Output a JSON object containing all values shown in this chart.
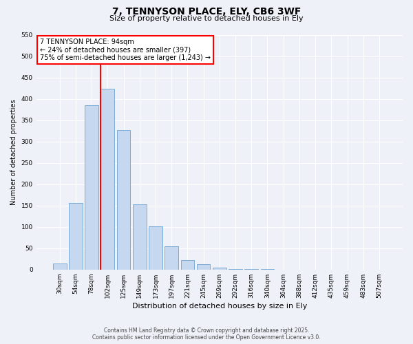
{
  "title_line1": "7, TENNYSON PLACE, ELY, CB6 3WF",
  "title_line2": "Size of property relative to detached houses in Ely",
  "bar_labels": [
    "30sqm",
    "54sqm",
    "78sqm",
    "102sqm",
    "125sqm",
    "149sqm",
    "173sqm",
    "197sqm",
    "221sqm",
    "245sqm",
    "269sqm",
    "292sqm",
    "316sqm",
    "340sqm",
    "364sqm",
    "388sqm",
    "412sqm",
    "435sqm",
    "459sqm",
    "483sqm",
    "507sqm"
  ],
  "bar_values": [
    15,
    157,
    385,
    424,
    328,
    153,
    102,
    55,
    22,
    12,
    5,
    2,
    1,
    1,
    0,
    0,
    0,
    0,
    0,
    0,
    0
  ],
  "bar_color": "#c5d8f0",
  "bar_edge_color": "#7aaad4",
  "vline_color": "red",
  "ylabel": "Number of detached properties",
  "xlabel": "Distribution of detached houses by size in Ely",
  "ylim": [
    0,
    550
  ],
  "yticks": [
    0,
    50,
    100,
    150,
    200,
    250,
    300,
    350,
    400,
    450,
    500,
    550
  ],
  "annotation_title": "7 TENNYSON PLACE: 94sqm",
  "annotation_line1": "← 24% of detached houses are smaller (397)",
  "annotation_line2": "75% of semi-detached houses are larger (1,243) →",
  "annotation_box_color": "#ffffff",
  "annotation_box_edge": "red",
  "footer_line1": "Contains HM Land Registry data © Crown copyright and database right 2025.",
  "footer_line2": "Contains public sector information licensed under the Open Government Licence v3.0.",
  "bg_color": "#eef2f8",
  "grid_color": "#ffffff",
  "title_fontsize": 10,
  "subtitle_fontsize": 8,
  "ylabel_fontsize": 7,
  "xlabel_fontsize": 8,
  "tick_fontsize": 6.5,
  "ann_fontsize": 7,
  "footer_fontsize": 5.5
}
